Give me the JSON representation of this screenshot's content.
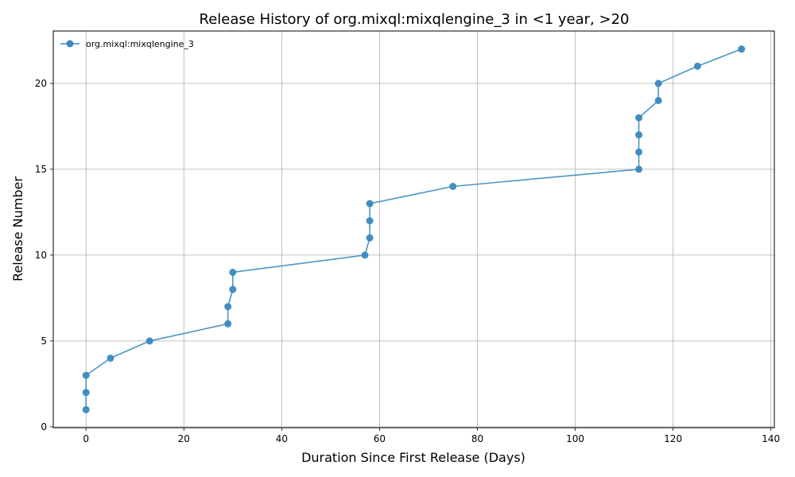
{
  "chart_data": {
    "type": "line",
    "title": "Release History of org.mixql:mixqlengine_3 in <1 year, >20",
    "xlabel": "Duration Since First Release (Days)",
    "ylabel": "Release Number",
    "xlim": [
      -6.7,
      140.7
    ],
    "ylim": [
      -0.05,
      23.05
    ],
    "x_ticks": [
      0,
      20,
      40,
      60,
      80,
      100,
      120,
      140
    ],
    "y_ticks": [
      0,
      5,
      10,
      15,
      20
    ],
    "grid": true,
    "legend": "top-left",
    "color": "#3a89be",
    "series": [
      {
        "name": "org.mixql:mixqlengine_3",
        "x": [
          0,
          0,
          0,
          5,
          13,
          29,
          29,
          30,
          30,
          57,
          58,
          58,
          58,
          75,
          113,
          113,
          113,
          113,
          117,
          117,
          125,
          134
        ],
        "y": [
          1,
          2,
          3,
          4,
          5,
          6,
          7,
          8,
          9,
          10,
          11,
          12,
          13,
          14,
          15,
          16,
          17,
          18,
          19,
          20,
          21,
          22
        ]
      }
    ]
  }
}
